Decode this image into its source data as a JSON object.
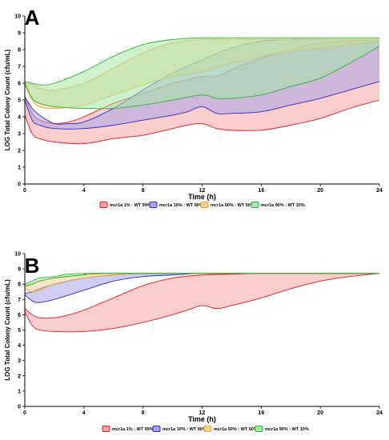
{
  "chart_data": [
    {
      "type": "area",
      "panel": "A",
      "xlabel": "Time (h)",
      "ylabel": "LOG Total Colony Count (cfu/mL)",
      "xlim": [
        0,
        24
      ],
      "ylim": [
        0,
        10
      ],
      "xticks": [
        0,
        4,
        8,
        12,
        16,
        20,
        24
      ],
      "yticks": [
        0,
        1,
        2,
        3,
        4,
        5,
        6,
        7,
        8,
        9,
        10
      ],
      "grid": false,
      "legend_position": "bottom",
      "series": [
        {
          "name": "mcr1a 1% : WT 99%",
          "color": "#e8161b",
          "fill": "#f7a6a6",
          "upper": [
            [
              0,
              5.2
            ],
            [
              0.5,
              4.2
            ],
            [
              1,
              3.8
            ],
            [
              2,
              3.6
            ],
            [
              3,
              3.7
            ],
            [
              4,
              4.0
            ],
            [
              6,
              4.8
            ],
            [
              8,
              5.4
            ],
            [
              10,
              6.0
            ],
            [
              11,
              6.2
            ],
            [
              12,
              6.4
            ],
            [
              13,
              6.4
            ],
            [
              14,
              6.8
            ],
            [
              16,
              7.5
            ],
            [
              18,
              8.0
            ],
            [
              20,
              8.4
            ],
            [
              22,
              8.5
            ],
            [
              24,
              8.6
            ]
          ],
          "lower": [
            [
              0,
              4.1
            ],
            [
              0.5,
              3.0
            ],
            [
              1,
              2.7
            ],
            [
              2,
              2.5
            ],
            [
              4,
              2.4
            ],
            [
              6,
              2.7
            ],
            [
              8,
              2.9
            ],
            [
              10,
              3.3
            ],
            [
              11,
              3.5
            ],
            [
              12,
              3.6
            ],
            [
              13,
              3.3
            ],
            [
              14,
              3.2
            ],
            [
              16,
              3.2
            ],
            [
              18,
              3.5
            ],
            [
              20,
              3.9
            ],
            [
              22,
              4.5
            ],
            [
              24,
              5.0
            ]
          ]
        },
        {
          "name": "mcr1a 10% : WT 90%",
          "color": "#2a2ac8",
          "fill": "#a8a4e4",
          "upper": [
            [
              0,
              5.2
            ],
            [
              0.5,
              4.5
            ],
            [
              1,
              4.1
            ],
            [
              2,
              3.6
            ],
            [
              3,
              3.6
            ],
            [
              4,
              3.7
            ],
            [
              6,
              4.5
            ],
            [
              8,
              5.6
            ],
            [
              10,
              6.6
            ],
            [
              12,
              7.4
            ],
            [
              14,
              8.1
            ],
            [
              16,
              8.5
            ],
            [
              18,
              8.6
            ],
            [
              20,
              8.6
            ],
            [
              22,
              8.6
            ],
            [
              24,
              8.6
            ]
          ],
          "lower": [
            [
              0,
              5.0
            ],
            [
              0.5,
              3.8
            ],
            [
              1,
              3.5
            ],
            [
              2,
              3.3
            ],
            [
              4,
              3.3
            ],
            [
              6,
              3.5
            ],
            [
              8,
              3.8
            ],
            [
              10,
              4.1
            ],
            [
              11,
              4.3
            ],
            [
              12,
              4.6
            ],
            [
              13,
              4.2
            ],
            [
              14,
              4.2
            ],
            [
              16,
              4.3
            ],
            [
              18,
              4.7
            ],
            [
              20,
              5.1
            ],
            [
              22,
              5.6
            ],
            [
              24,
              6.1
            ]
          ]
        },
        {
          "name": "mcr1a 50% : WT 50%",
          "color": "#f5a623",
          "fill": "#f3d29a",
          "upper": [
            [
              0,
              6.0
            ],
            [
              0.5,
              5.9
            ],
            [
              1,
              5.7
            ],
            [
              2,
              5.6
            ],
            [
              4,
              6.0
            ],
            [
              6,
              6.9
            ],
            [
              8,
              7.8
            ],
            [
              10,
              8.4
            ],
            [
              12,
              8.6
            ],
            [
              14,
              8.6
            ],
            [
              16,
              8.6
            ],
            [
              18,
              8.6
            ],
            [
              20,
              8.6
            ],
            [
              22,
              8.6
            ],
            [
              24,
              8.6
            ]
          ],
          "lower": [
            [
              0,
              5.9
            ],
            [
              0.5,
              5.0
            ],
            [
              1,
              4.6
            ],
            [
              2,
              4.5
            ],
            [
              4,
              4.7
            ],
            [
              6,
              5.3
            ],
            [
              8,
              5.9
            ],
            [
              10,
              6.4
            ],
            [
              12,
              6.7
            ],
            [
              14,
              7.2
            ],
            [
              16,
              7.6
            ],
            [
              18,
              7.9
            ],
            [
              20,
              8.1
            ],
            [
              22,
              8.3
            ],
            [
              24,
              8.5
            ]
          ]
        },
        {
          "name": "mcr1a 90% : WT 10%",
          "color": "#2db52d",
          "fill": "#a6e6a6",
          "upper": [
            [
              0,
              6.1
            ],
            [
              0.5,
              6.0
            ],
            [
              1,
              5.9
            ],
            [
              2,
              6.0
            ],
            [
              4,
              6.7
            ],
            [
              6,
              7.6
            ],
            [
              8,
              8.3
            ],
            [
              10,
              8.6
            ],
            [
              12,
              8.7
            ],
            [
              16,
              8.7
            ],
            [
              20,
              8.7
            ],
            [
              24,
              8.7
            ]
          ],
          "lower": [
            [
              0,
              6.0
            ],
            [
              0.5,
              5.1
            ],
            [
              1,
              4.8
            ],
            [
              2,
              4.6
            ],
            [
              4,
              4.5
            ],
            [
              6,
              4.5
            ],
            [
              8,
              4.7
            ],
            [
              10,
              5.0
            ],
            [
              12,
              5.3
            ],
            [
              13,
              5.1
            ],
            [
              14,
              5.1
            ],
            [
              16,
              5.3
            ],
            [
              18,
              5.8
            ],
            [
              20,
              6.3
            ],
            [
              22,
              7.2
            ],
            [
              24,
              8.2
            ]
          ]
        }
      ]
    },
    {
      "type": "area",
      "panel": "B",
      "xlabel": "Time (h)",
      "ylabel": "LOG Total Colony Count (cfu/mL)",
      "xlim": [
        0,
        24
      ],
      "ylim": [
        0,
        10
      ],
      "xticks": [
        0,
        4,
        8,
        12,
        16,
        20,
        24
      ],
      "yticks": [
        0,
        1,
        2,
        3,
        4,
        5,
        6,
        7,
        8,
        9,
        10
      ],
      "grid": false,
      "legend_position": "bottom",
      "series": [
        {
          "name": "mcr1a 1% : WT 99%",
          "color": "#e8161b",
          "fill": "#f7a6a6",
          "upper": [
            [
              0,
              6.4
            ],
            [
              0.5,
              6.0
            ],
            [
              1,
              5.8
            ],
            [
              2,
              5.8
            ],
            [
              3,
              6.0
            ],
            [
              4,
              6.3
            ],
            [
              6,
              7.1
            ],
            [
              8,
              7.9
            ],
            [
              10,
              8.4
            ],
            [
              12,
              8.6
            ],
            [
              14,
              8.65
            ],
            [
              16,
              8.7
            ],
            [
              20,
              8.7
            ],
            [
              24,
              8.7
            ]
          ],
          "lower": [
            [
              0,
              6.2
            ],
            [
              0.5,
              5.3
            ],
            [
              1,
              5.0
            ],
            [
              2,
              4.9
            ],
            [
              4,
              4.9
            ],
            [
              6,
              5.1
            ],
            [
              8,
              5.5
            ],
            [
              10,
              6.0
            ],
            [
              11,
              6.3
            ],
            [
              12,
              6.6
            ],
            [
              13,
              6.4
            ],
            [
              14,
              6.6
            ],
            [
              16,
              7.1
            ],
            [
              18,
              7.7
            ],
            [
              20,
              8.2
            ],
            [
              22,
              8.5
            ],
            [
              24,
              8.7
            ]
          ]
        },
        {
          "name": "mcr1a 10% : WT 90%",
          "color": "#2a2ac8",
          "fill": "#a8a4e4",
          "upper": [
            [
              0,
              7.4
            ],
            [
              0.5,
              7.5
            ],
            [
              1,
              7.7
            ],
            [
              2,
              8.0
            ],
            [
              4,
              8.4
            ],
            [
              6,
              8.6
            ],
            [
              8,
              8.7
            ],
            [
              12,
              8.7
            ],
            [
              16,
              8.7
            ],
            [
              20,
              8.7
            ],
            [
              24,
              8.7
            ]
          ],
          "lower": [
            [
              0,
              7.3
            ],
            [
              0.5,
              6.9
            ],
            [
              1,
              6.8
            ],
            [
              2,
              7.0
            ],
            [
              4,
              7.6
            ],
            [
              6,
              8.2
            ],
            [
              8,
              8.5
            ],
            [
              10,
              8.6
            ],
            [
              12,
              8.7
            ],
            [
              16,
              8.7
            ],
            [
              20,
              8.7
            ],
            [
              24,
              8.7
            ]
          ]
        },
        {
          "name": "mcr1a 50% : WT 50%",
          "color": "#f5a623",
          "fill": "#f3d29a",
          "upper": [
            [
              0,
              7.8
            ],
            [
              0.5,
              8.0
            ],
            [
              1,
              8.2
            ],
            [
              2,
              8.4
            ],
            [
              4,
              8.6
            ],
            [
              6,
              8.7
            ],
            [
              12,
              8.7
            ],
            [
              24,
              8.7
            ]
          ],
          "lower": [
            [
              0,
              7.7
            ],
            [
              0.5,
              7.5
            ],
            [
              1,
              7.6
            ],
            [
              2,
              8.0
            ],
            [
              4,
              8.4
            ],
            [
              6,
              8.6
            ],
            [
              8,
              8.7
            ],
            [
              12,
              8.7
            ],
            [
              24,
              8.7
            ]
          ]
        },
        {
          "name": "mcr1a 90% : WT 10%",
          "color": "#2db52d",
          "fill": "#a6e6a6",
          "upper": [
            [
              0,
              8.0
            ],
            [
              0.5,
              8.2
            ],
            [
              1,
              8.4
            ],
            [
              2,
              8.5
            ],
            [
              4,
              8.7
            ],
            [
              12,
              8.7
            ],
            [
              24,
              8.7
            ]
          ],
          "lower": [
            [
              0,
              7.9
            ],
            [
              0.5,
              8.0
            ],
            [
              1,
              8.2
            ],
            [
              2,
              8.4
            ],
            [
              4,
              8.6
            ],
            [
              6,
              8.7
            ],
            [
              24,
              8.7
            ]
          ]
        }
      ]
    }
  ]
}
